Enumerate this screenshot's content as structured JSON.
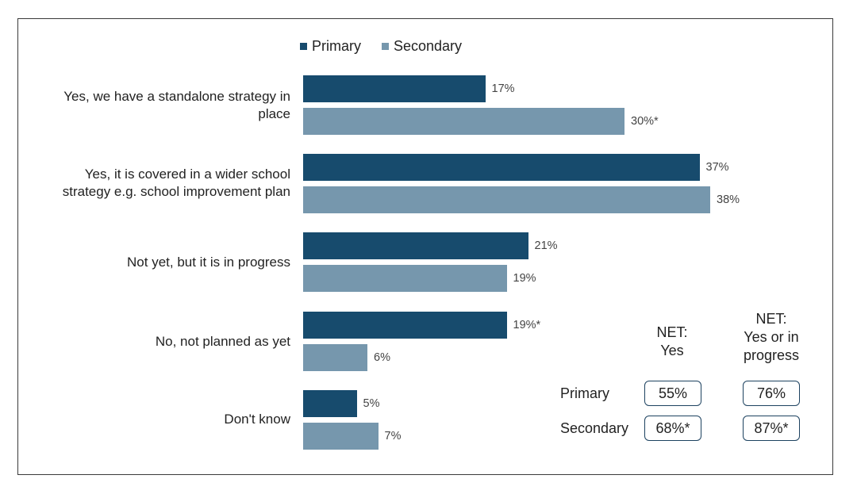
{
  "colors": {
    "primary": "#174b6d",
    "secondary": "#7697ad"
  },
  "legend": {
    "primary": "Primary",
    "secondary": "Secondary"
  },
  "chart_data": {
    "type": "bar",
    "orientation": "horizontal",
    "categories": [
      "Yes, we have a standalone strategy in place",
      "Yes, it is covered in a wider school strategy e.g. school improvement plan",
      "Not yet, but it is in progress",
      "No, not planned as yet",
      "Don't know"
    ],
    "series": [
      {
        "name": "Primary",
        "values": [
          17,
          37,
          21,
          19,
          5
        ]
      },
      {
        "name": "Secondary",
        "values": [
          30,
          38,
          19,
          6,
          7
        ]
      }
    ],
    "labels": {
      "primary": [
        "17%",
        "37%",
        "21%",
        "19%*",
        "5%"
      ],
      "secondary": [
        "30%*",
        "38%",
        "19%",
        "6%",
        "7%"
      ]
    },
    "xlim": [
      0,
      38
    ],
    "grid": false,
    "legend_position": "top"
  },
  "categories_display": [
    {
      "line1": "Yes, we have a standalone strategy in",
      "line2": "place"
    },
    {
      "line1": "Yes, it is covered in a wider school",
      "line2": "strategy e.g. school improvement plan"
    },
    {
      "line1": "Not yet, but it is in progress",
      "line2": ""
    },
    {
      "line1": "No, not planned as yet",
      "line2": ""
    },
    {
      "line1": "Don't know",
      "line2": ""
    }
  ],
  "net_table": {
    "col1_header": [
      "NET:",
      "Yes"
    ],
    "col2_header": [
      "NET:",
      "Yes or in",
      "progress"
    ],
    "rows": [
      {
        "label": "Primary",
        "net_yes": "55%",
        "net_yes_progress": "76%"
      },
      {
        "label": "Secondary",
        "net_yes": "68%*",
        "net_yes_progress": "87%*"
      }
    ]
  }
}
